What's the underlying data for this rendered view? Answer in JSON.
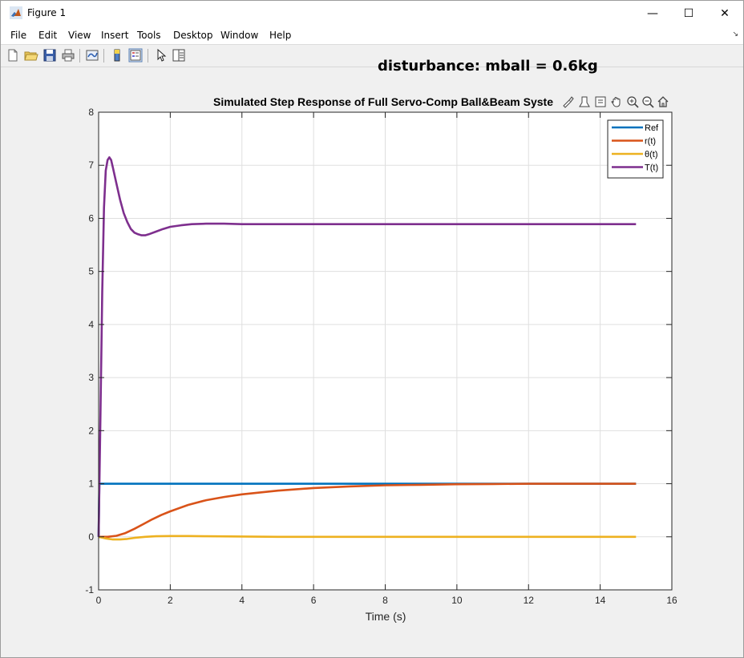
{
  "window": {
    "title": "Figure 1",
    "buttons": {
      "minimize": "—",
      "maximize": "☐",
      "close": "✕"
    }
  },
  "menu": {
    "items": [
      "File",
      "Edit",
      "View",
      "Insert",
      "Tools",
      "Desktop",
      "Window",
      "Help"
    ],
    "overflow": "↘"
  },
  "toolbar": {
    "icons": [
      "new-figure-icon",
      "open-file-icon",
      "save-icon",
      "print-icon",
      "link-plot-icon",
      "colorbar-icon",
      "legend-icon",
      "pointer-icon",
      "property-inspector-icon"
    ]
  },
  "annotation": "disturbance: mball = 0.6kg",
  "axes_toolbar": {
    "icons": [
      "brush-icon",
      "data-tips-icon",
      "export-icon",
      "pan-icon",
      "zoom-in-icon",
      "zoom-out-icon",
      "home-icon"
    ]
  },
  "chart_data": {
    "type": "line",
    "title": "Simulated Step Response of Full Servo-Comp Ball&Beam Syste",
    "xlabel": "Time (s)",
    "ylabel": "",
    "xlim": [
      0,
      16
    ],
    "ylim": [
      -1,
      8
    ],
    "xticks": [
      0,
      2,
      4,
      6,
      8,
      10,
      12,
      14,
      16
    ],
    "yticks": [
      -1,
      0,
      1,
      2,
      3,
      4,
      5,
      6,
      7,
      8
    ],
    "xtick_labels": [
      "0",
      "2",
      "4",
      "6",
      "8",
      "10",
      "12",
      "14",
      "16"
    ],
    "ytick_labels": [
      "-1",
      "0",
      "1",
      "2",
      "3",
      "4",
      "5",
      "6",
      "7",
      "8"
    ],
    "grid": true,
    "legend_position": "top-right",
    "series": [
      {
        "name": "Ref",
        "color": "#0072BD",
        "x": [
          0,
          0.02,
          15
        ],
        "y": [
          0,
          1,
          1
        ]
      },
      {
        "name": "r(t)",
        "color": "#D95319",
        "x": [
          0,
          0.25,
          0.5,
          0.75,
          1,
          1.25,
          1.5,
          1.75,
          2,
          2.5,
          3,
          3.5,
          4,
          5,
          6,
          7,
          8,
          9,
          10,
          11,
          12,
          13,
          14,
          15
        ],
        "y": [
          0,
          0.0,
          0.02,
          0.07,
          0.15,
          0.24,
          0.33,
          0.41,
          0.48,
          0.6,
          0.69,
          0.75,
          0.8,
          0.87,
          0.92,
          0.95,
          0.97,
          0.98,
          0.99,
          0.995,
          1.0,
          1.0,
          1.0,
          1.0
        ]
      },
      {
        "name": "θ(t)",
        "color": "#EDB120",
        "x": [
          0,
          0.2,
          0.4,
          0.6,
          0.8,
          1.0,
          1.3,
          1.6,
          2.0,
          2.5,
          3,
          4,
          5,
          6,
          8,
          10,
          12,
          15
        ],
        "y": [
          0,
          -0.03,
          -0.05,
          -0.05,
          -0.04,
          -0.02,
          0.0,
          0.01,
          0.015,
          0.015,
          0.01,
          0.005,
          0,
          0,
          0,
          0,
          0,
          0
        ]
      },
      {
        "name": "T(t)",
        "color": "#7E2F8E",
        "x": [
          0,
          0.05,
          0.1,
          0.15,
          0.2,
          0.25,
          0.3,
          0.35,
          0.4,
          0.5,
          0.6,
          0.7,
          0.8,
          0.9,
          1.0,
          1.1,
          1.2,
          1.3,
          1.4,
          1.6,
          1.8,
          2.0,
          2.3,
          2.6,
          3.0,
          3.5,
          4.0,
          5,
          6,
          8,
          10,
          12,
          15
        ],
        "y": [
          0,
          2.2,
          4.6,
          6.2,
          6.9,
          7.1,
          7.15,
          7.1,
          6.95,
          6.65,
          6.35,
          6.1,
          5.93,
          5.8,
          5.73,
          5.7,
          5.68,
          5.68,
          5.7,
          5.75,
          5.8,
          5.84,
          5.87,
          5.89,
          5.9,
          5.9,
          5.89,
          5.89,
          5.89,
          5.89,
          5.89,
          5.89,
          5.89
        ]
      }
    ]
  }
}
